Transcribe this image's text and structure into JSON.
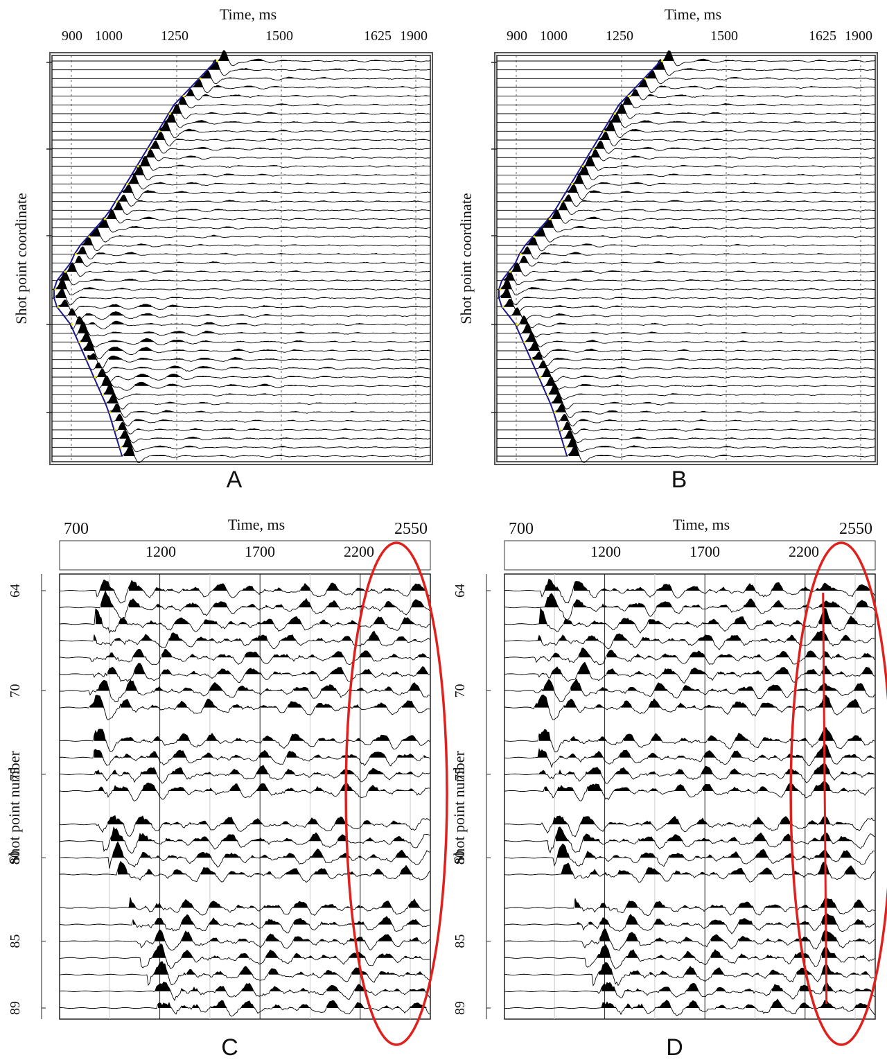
{
  "figure": {
    "colors": {
      "ink": "#000000",
      "pick_line": "#1a1a8c",
      "pick_dots": "#f2e600",
      "highlight": "#e0201c"
    }
  },
  "chart_data": [
    {
      "panel": "A",
      "type": "line",
      "title": "",
      "xlabel": "Time, ms",
      "ylabel": "Shot point coordinate",
      "x_ticks": [
        "900",
        "1000",
        "1250",
        "1500",
        "1625",
        "1900"
      ],
      "y_ticks": [],
      "trace_count": 46,
      "first_break_ms": [
        1350,
        1330,
        1310,
        1290,
        1270,
        1250,
        1230,
        1210,
        1190,
        1170,
        1150,
        1130,
        1110,
        1090,
        1070,
        1050,
        1030,
        1010,
        990,
        970,
        950,
        930,
        915,
        905,
        895,
        888,
        885,
        885,
        888,
        895,
        905,
        915,
        925,
        935,
        945,
        955,
        965,
        975,
        985,
        995,
        1005,
        1015,
        1025,
        1035,
        1045,
        1055
      ],
      "grid": "dashed vertical",
      "fill": "positive lobes black (wiggle-variable area)"
    },
    {
      "panel": "B",
      "type": "line",
      "title": "",
      "xlabel": "Time, ms",
      "ylabel": "Shot point coordinate",
      "x_ticks": [
        "900",
        "1000",
        "1250",
        "1500",
        "1625",
        "1900"
      ],
      "y_ticks": [],
      "trace_count": 46,
      "first_break_ms": [
        1350,
        1330,
        1310,
        1290,
        1270,
        1250,
        1230,
        1210,
        1190,
        1170,
        1150,
        1130,
        1110,
        1090,
        1070,
        1050,
        1030,
        1010,
        990,
        970,
        950,
        930,
        915,
        905,
        895,
        888,
        885,
        885,
        888,
        895,
        905,
        915,
        925,
        935,
        945,
        955,
        965,
        975,
        985,
        995,
        1005,
        1015,
        1025,
        1035,
        1045,
        1055
      ],
      "grid": "dashed vertical",
      "fill": "positive lobes black (wiggle-variable area)"
    },
    {
      "panel": "C",
      "type": "line",
      "title": "",
      "xlabel": "Time, ms",
      "ylabel": "Shot point number",
      "x_ticks_top": [
        "700",
        "2550"
      ],
      "x_ticks": [
        "1200",
        "1700",
        "2200"
      ],
      "y_ticks": [
        "64",
        "70",
        "75",
        "80",
        "85",
        "89"
      ],
      "traces": [
        64,
        65,
        66,
        67,
        68,
        69,
        70,
        71,
        73,
        74,
        75,
        76,
        78,
        79,
        80,
        81,
        83,
        84,
        85,
        86,
        87,
        88,
        89
      ],
      "first_break_ms": [
        900,
        920,
        890,
        880,
        860,
        880,
        860,
        850,
        880,
        880,
        890,
        910,
        900,
        930,
        960,
        1000,
        1060,
        1080,
        1100,
        1120,
        1150,
        1180,
        1200
      ],
      "highlight": "red ellipse around 2170-2550 ms"
    },
    {
      "panel": "D",
      "type": "line",
      "title": "",
      "xlabel": "Time, ms",
      "ylabel": "Shot point number",
      "x_ticks_top": [
        "700",
        "2550"
      ],
      "x_ticks": [
        "1200",
        "1700",
        "2200"
      ],
      "y_ticks": [
        "64",
        "70",
        "75",
        "80",
        "85",
        "89"
      ],
      "traces": [
        64,
        65,
        66,
        67,
        68,
        69,
        70,
        71,
        73,
        74,
        75,
        76,
        78,
        79,
        80,
        81,
        83,
        84,
        85,
        86,
        87,
        88,
        89
      ],
      "first_break_ms": [
        900,
        920,
        890,
        880,
        860,
        880,
        860,
        850,
        880,
        880,
        890,
        910,
        900,
        930,
        960,
        1000,
        1060,
        1080,
        1100,
        1120,
        1150,
        1180,
        1200
      ],
      "highlight": "red ellipse around 2170-2550 ms with aligned event at ~2300 ms"
    }
  ]
}
